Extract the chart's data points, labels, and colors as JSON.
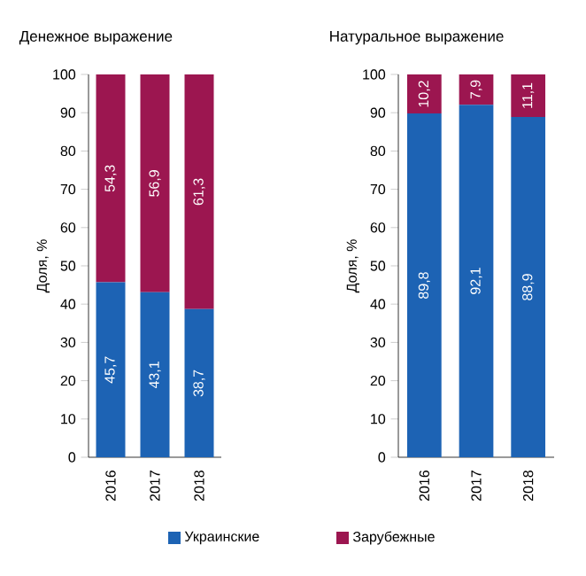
{
  "chart_data": [
    {
      "type": "bar",
      "stacked": true,
      "title": "Денежное выражение",
      "ylabel": "Доля, %",
      "categories": [
        "2016",
        "2017",
        "2018"
      ],
      "ylim": [
        0,
        100
      ],
      "yticks": [
        0,
        10,
        20,
        30,
        40,
        50,
        60,
        70,
        80,
        90,
        100
      ],
      "legend": "bottom",
      "series": [
        {
          "name": "Украинские",
          "color": "#1d63b4",
          "values": [
            45.7,
            43.1,
            38.7
          ],
          "value_labels": [
            "45,7",
            "43,1",
            "38,7"
          ]
        },
        {
          "name": "Зарубежные",
          "color": "#9c1650",
          "values": [
            54.3,
            56.9,
            61.3
          ],
          "value_labels": [
            "54,3",
            "56,9",
            "61,3"
          ]
        }
      ]
    },
    {
      "type": "bar",
      "stacked": true,
      "title": "Натуральное выражение",
      "ylabel": "Доля, %",
      "categories": [
        "2016",
        "2017",
        "2018"
      ],
      "ylim": [
        0,
        100
      ],
      "yticks": [
        0,
        10,
        20,
        30,
        40,
        50,
        60,
        70,
        80,
        90,
        100
      ],
      "series": [
        {
          "color": "#1d63b4",
          "values": [
            89.8,
            92.1,
            88.9
          ],
          "value_labels": [
            "89,8",
            "92,1",
            "88,9"
          ]
        },
        {
          "color": "#9c1650",
          "values": [
            10.2,
            7.9,
            11.1
          ],
          "value_labels": [
            "10,2",
            "7,9",
            "11,1"
          ]
        }
      ]
    }
  ]
}
